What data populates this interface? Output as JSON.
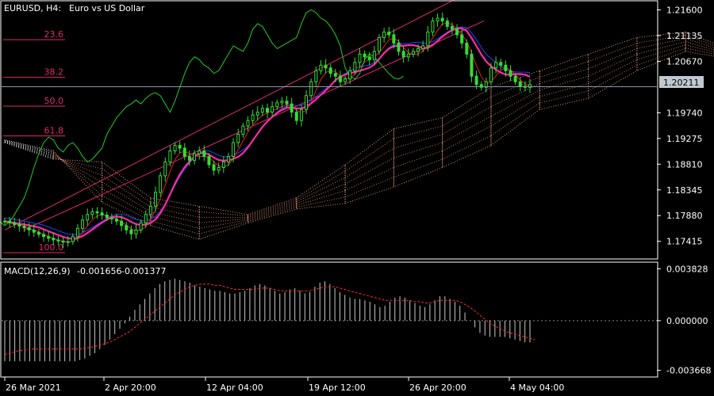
{
  "header": {
    "symbol": "EURUSD, H4:",
    "description": "Euro vs US Dollar"
  },
  "macd_header": {
    "label": "MACD(12,26,9)",
    "main_value": "-0.001656",
    "signal_value": "-0.001377"
  },
  "current_price_label": "1.20211",
  "colors": {
    "background": "#000000",
    "frame": "#ffffff",
    "candle": "#33dd33",
    "ma_red": "#dd2222",
    "ma_magenta": "#ff2aa6",
    "kijun_blue": "#2244ff",
    "chikou_green": "#22cc22",
    "channel": "#e0286e",
    "cloud_bull": "#f4a582",
    "cloud_bear": "#ffffff",
    "fib": "#e0286e",
    "macd_hist": "#c8c8c8",
    "macd_signal": "#ff2a2a",
    "price_line": "#8899aa"
  },
  "chart_data": [
    {
      "type": "candlestick",
      "title": "EURUSD, H4: Euro vs US Dollar",
      "y_axis_ticks": [
        "1.21600",
        "1.21135",
        "1.20670",
        "1.20211",
        "1.19740",
        "1.19275",
        "1.18810",
        "1.18345",
        "1.17880",
        "1.17415"
      ],
      "ylim": [
        1.1711,
        1.2175
      ],
      "x_axis_labels": [
        "26 Mar 2021",
        "2 Apr 20:00",
        "12 Apr 04:00",
        "19 Apr 12:00",
        "26 Apr 20:00",
        "4 May 04:00"
      ],
      "current_price": 1.20211,
      "close_series": [
        1.1778,
        1.1775,
        1.1772,
        1.1769,
        1.1766,
        1.1762,
        1.1758,
        1.1754,
        1.175,
        1.1747,
        1.1744,
        1.1742,
        1.174,
        1.1741,
        1.175,
        1.1765,
        1.178,
        1.179,
        1.1795,
        1.1793,
        1.1789,
        1.1784,
        1.1782,
        1.1778,
        1.177,
        1.1762,
        1.1755,
        1.1762,
        1.1775,
        1.179,
        1.1805,
        1.183,
        1.186,
        1.1885,
        1.1905,
        1.1915,
        1.191,
        1.1895,
        1.1888,
        1.19,
        1.1905,
        1.1895,
        1.188,
        1.187,
        1.1875,
        1.1885,
        1.1895,
        1.192,
        1.1935,
        1.195,
        1.196,
        1.197,
        1.1975,
        1.1982,
        1.1975,
        1.1985,
        1.1992,
        1.1995,
        1.199,
        1.1975,
        1.196,
        1.198,
        1.2005,
        1.203,
        1.205,
        1.206,
        1.2055,
        1.2045,
        1.204,
        1.203,
        1.2035,
        1.205,
        1.2065,
        1.208,
        1.2075,
        1.207,
        1.2085,
        1.211,
        1.212,
        1.2115,
        1.21,
        1.2085,
        1.2075,
        1.208,
        1.2085,
        1.209,
        1.2095,
        1.212,
        1.214,
        1.2145,
        1.214,
        1.213,
        1.2125,
        1.2115,
        1.21,
        1.208,
        1.204,
        1.2025,
        1.202,
        1.203,
        1.2055,
        1.2065,
        1.206,
        1.205,
        1.204,
        1.203,
        1.2022,
        1.202,
        1.2025
      ],
      "ichimoku_cloud": [
        {
          "x_index": 0,
          "span_a": 1.192,
          "span_b": 1.1925
        },
        {
          "x_index": 10,
          "span_a": 1.189,
          "span_b": 1.1905
        },
        {
          "x_index": 20,
          "span_a": 1.1885,
          "span_b": 1.1812
        },
        {
          "x_index": 30,
          "span_a": 1.182,
          "span_b": 1.177
        },
        {
          "x_index": 40,
          "span_a": 1.1805,
          "span_b": 1.1745
        },
        {
          "x_index": 50,
          "span_a": 1.179,
          "span_b": 1.1775
        },
        {
          "x_index": 60,
          "span_a": 1.182,
          "span_b": 1.18
        },
        {
          "x_index": 70,
          "span_a": 1.188,
          "span_b": 1.181
        },
        {
          "x_index": 80,
          "span_a": 1.1945,
          "span_b": 1.184
        },
        {
          "x_index": 90,
          "span_a": 1.1965,
          "span_b": 1.1875
        },
        {
          "x_index": 100,
          "span_a": 1.202,
          "span_b": 1.1915
        },
        {
          "x_index": 110,
          "span_a": 1.205,
          "span_b": 1.198
        },
        {
          "x_index": 120,
          "span_a": 1.208,
          "span_b": 1.2
        },
        {
          "x_index": 130,
          "span_a": 1.211,
          "span_b": 1.205
        },
        {
          "x_index": 140,
          "span_a": 1.212,
          "span_b": 1.2085
        },
        {
          "x_index": 150,
          "span_a": 1.2085,
          "span_b": 1.207
        },
        {
          "x_index": 160,
          "span_a": 1.2075,
          "span_b": 1.206
        }
      ],
      "fibonacci_levels": [
        {
          "label": "23.6",
          "price": 1.2106
        },
        {
          "label": "38.2",
          "price": 1.2038
        },
        {
          "label": "50.0",
          "price": 1.1986
        },
        {
          "label": "61.8",
          "price": 1.1932
        },
        {
          "label": "100.0",
          "price": 1.1721
        }
      ]
    },
    {
      "type": "bar",
      "title": "MACD(12,26,9) -0.001656 -0.001377",
      "y_axis_ticks": [
        "0.003828",
        "0.000000",
        "-0.003668"
      ],
      "ylim": [
        -0.0041,
        0.0042
      ],
      "histogram": [
        -0.003,
        -0.003,
        -0.003,
        -0.003,
        -0.003,
        -0.003,
        -0.003,
        -0.003,
        -0.003,
        -0.003,
        -0.003,
        -0.003,
        -0.003,
        -0.003,
        -0.003,
        -0.0029,
        -0.0028,
        -0.0026,
        -0.0024,
        -0.0021,
        -0.0018,
        -0.0014,
        -0.001,
        -0.0006,
        -0.0002,
        0.0003,
        0.0008,
        0.0012,
        0.0016,
        0.002,
        0.0024,
        0.0027,
        0.0029,
        0.003,
        0.0031,
        0.003,
        0.0029,
        0.0028,
        0.0026,
        0.0025,
        0.0024,
        0.0023,
        0.0022,
        0.0022,
        0.0021,
        0.002,
        0.002,
        0.0021,
        0.0022,
        0.0024,
        0.0026,
        0.0027,
        0.0026,
        0.0024,
        0.0022,
        0.002,
        0.0021,
        0.0023,
        0.0024,
        0.0022,
        0.002,
        0.0021,
        0.0025,
        0.0028,
        0.0029,
        0.0027,
        0.0024,
        0.0021,
        0.0019,
        0.0017,
        0.0016,
        0.0016,
        0.0015,
        0.0014,
        0.0012,
        0.001,
        0.0011,
        0.0014,
        0.0017,
        0.0018,
        0.0017,
        0.0015,
        0.0013,
        0.0011,
        0.001,
        0.0012,
        0.0015,
        0.0018,
        0.0018,
        0.0016,
        0.0014,
        0.0011,
        0.0006,
        0.0,
        -0.0005,
        -0.0009,
        -0.0011,
        -0.0012,
        -0.0012,
        -0.0012,
        -0.0012,
        -0.0013,
        -0.0014,
        -0.0015,
        -0.0016,
        -0.0016
      ],
      "signal": [
        -0.0025,
        -0.0024,
        -0.0023,
        -0.0022,
        -0.0022,
        -0.0021,
        -0.0021,
        -0.0021,
        -0.0021,
        -0.0021,
        -0.0021,
        -0.0021,
        -0.0021,
        -0.0021,
        -0.0021,
        -0.0021,
        -0.002,
        -0.002,
        -0.0019,
        -0.0018,
        -0.0017,
        -0.0016,
        -0.0014,
        -0.0012,
        -0.001,
        -0.0008,
        -0.0005,
        -0.0002,
        0.0001,
        0.0004,
        0.0007,
        0.001,
        0.0013,
        0.0016,
        0.0019,
        0.0021,
        0.0023,
        0.0025,
        0.0026,
        0.0027,
        0.0027,
        0.0027,
        0.0026,
        0.0026,
        0.0025,
        0.0024,
        0.0023,
        0.0023,
        0.0023,
        0.0023,
        0.0023,
        0.0024,
        0.0024,
        0.0024,
        0.0023,
        0.0022,
        0.0022,
        0.0022,
        0.0022,
        0.0022,
        0.0022,
        0.0022,
        0.0023,
        0.0024,
        0.0025,
        0.0025,
        0.0025,
        0.0024,
        0.0023,
        0.0022,
        0.0021,
        0.002,
        0.0019,
        0.0018,
        0.0017,
        0.0016,
        0.0015,
        0.0015,
        0.0015,
        0.0015,
        0.0015,
        0.0015,
        0.0014,
        0.0014,
        0.0013,
        0.0013,
        0.0014,
        0.0015,
        0.0015,
        0.0015,
        0.0015,
        0.0014,
        0.0012,
        0.001,
        0.0007,
        0.0004,
        0.0001,
        -0.0002,
        -0.0004,
        -0.0006,
        -0.0008,
        -0.0009,
        -0.001,
        -0.0011,
        -0.0012,
        -0.0013,
        -0.0014
      ]
    }
  ]
}
